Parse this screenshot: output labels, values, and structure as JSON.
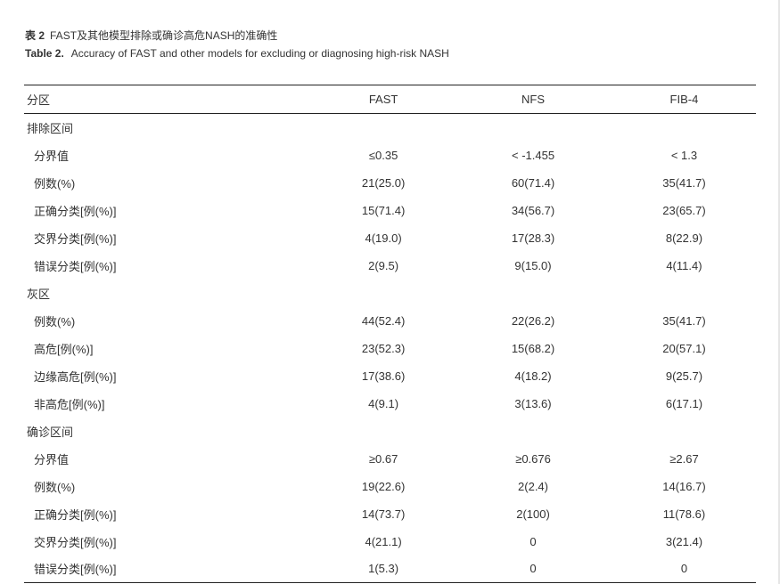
{
  "caption": {
    "cn_label": "表 2",
    "cn_title": "FAST及其他模型排除或确诊高危NASH的准确性",
    "en_label": "Table 2.",
    "en_title": "Accuracy of FAST and other models for excluding or diagnosing high-risk NASH"
  },
  "table": {
    "headers": [
      "分区",
      "FAST",
      "NFS",
      "FIB-4"
    ],
    "rows": [
      {
        "type": "section",
        "cells": [
          "排除区间",
          "",
          "",
          ""
        ]
      },
      {
        "type": "sub",
        "cells": [
          "分界值",
          "≤0.35",
          "< -1.455",
          "< 1.3"
        ]
      },
      {
        "type": "sub",
        "cells": [
          "例数(%)",
          "21(25.0)",
          "60(71.4)",
          "35(41.7)"
        ]
      },
      {
        "type": "sub",
        "cells": [
          "正确分类[例(%)]",
          "15(71.4)",
          "34(56.7)",
          "23(65.7)"
        ]
      },
      {
        "type": "sub",
        "cells": [
          "交界分类[例(%)]",
          "4(19.0)",
          "17(28.3)",
          "8(22.9)"
        ]
      },
      {
        "type": "sub",
        "cells": [
          "错误分类[例(%)]",
          "2(9.5)",
          "9(15.0)",
          "4(11.4)"
        ]
      },
      {
        "type": "section",
        "cells": [
          "灰区",
          "",
          "",
          ""
        ]
      },
      {
        "type": "sub",
        "cells": [
          "例数(%)",
          "44(52.4)",
          "22(26.2)",
          "35(41.7)"
        ]
      },
      {
        "type": "sub",
        "cells": [
          "高危[例(%)]",
          "23(52.3)",
          "15(68.2)",
          "20(57.1)"
        ]
      },
      {
        "type": "sub",
        "cells": [
          "边缘高危[例(%)]",
          "17(38.6)",
          "4(18.2)",
          "9(25.7)"
        ]
      },
      {
        "type": "sub",
        "cells": [
          "非高危[例(%)]",
          "4(9.1)",
          "3(13.6)",
          "6(17.1)"
        ]
      },
      {
        "type": "section",
        "cells": [
          "确诊区间",
          "",
          "",
          ""
        ]
      },
      {
        "type": "sub",
        "cells": [
          "分界值",
          "≥0.67",
          "≥0.676",
          "≥2.67"
        ]
      },
      {
        "type": "sub",
        "cells": [
          "例数(%)",
          "19(22.6)",
          "2(2.4)",
          "14(16.7)"
        ]
      },
      {
        "type": "sub",
        "cells": [
          "正确分类[例(%)]",
          "14(73.7)",
          "2(100)",
          "11(78.6)"
        ]
      },
      {
        "type": "sub",
        "cells": [
          "交界分类[例(%)]",
          "4(21.1)",
          "0",
          "3(21.4)"
        ]
      },
      {
        "type": "sub",
        "cells": [
          "错误分类[例(%)]",
          "1(5.3)",
          "0",
          "0"
        ]
      }
    ]
  }
}
